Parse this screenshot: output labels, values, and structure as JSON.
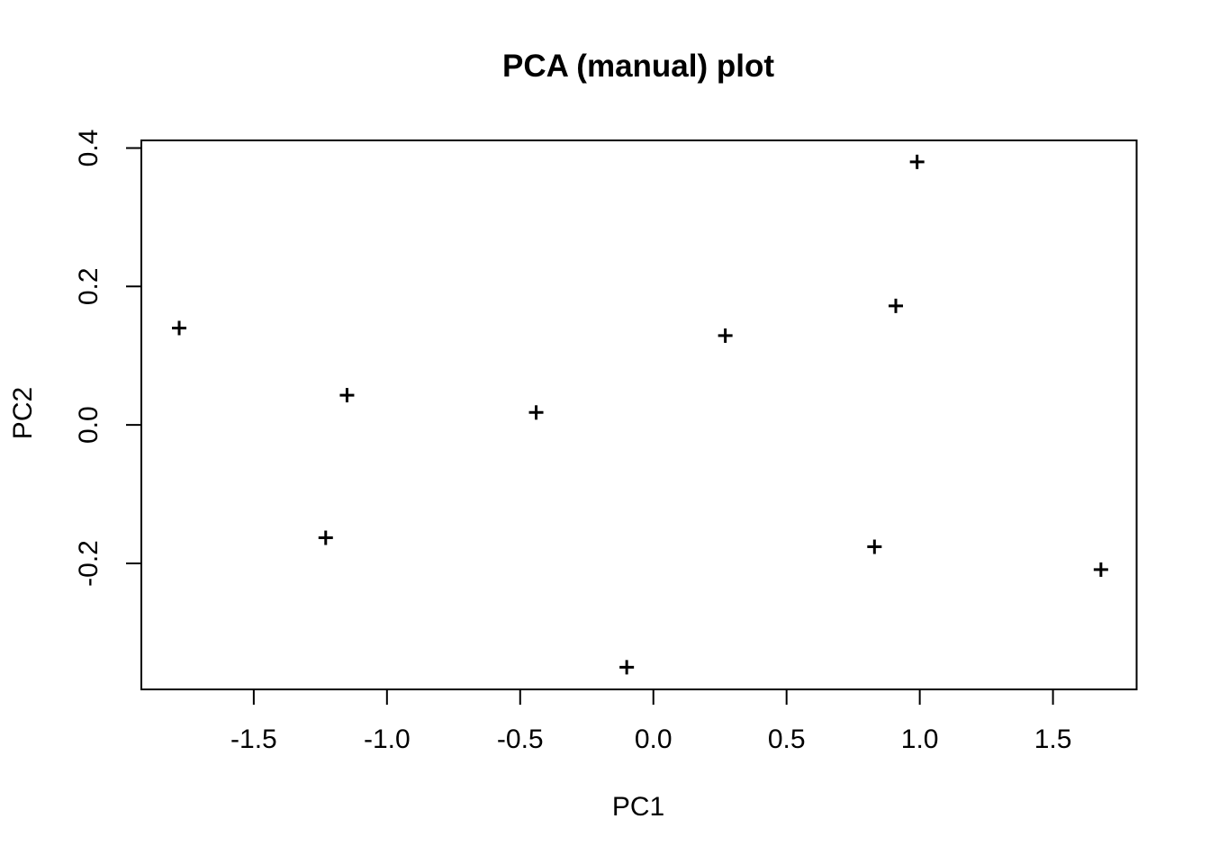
{
  "chart_data": {
    "type": "scatter",
    "title": "PCA (manual) plot",
    "xlabel": "PC1",
    "ylabel": "PC2",
    "marker": "plus",
    "marker_color": "#000000",
    "background_color": "#ffffff",
    "axis_color": "#000000",
    "grid": false,
    "legend": null,
    "xlim": [
      -1.92,
      1.81
    ],
    "ylim": [
      -0.38,
      0.41
    ],
    "xticks": [
      -1.5,
      -1.0,
      -0.5,
      0.0,
      0.5,
      1.0,
      1.5
    ],
    "xtick_labels": [
      "-1.5",
      "-1.0",
      "-0.5",
      "0.0",
      "0.5",
      "1.0",
      "1.5"
    ],
    "yticks": [
      -0.2,
      0.0,
      0.2,
      0.4
    ],
    "ytick_labels": [
      "-0.2",
      "0.0",
      "0.2",
      "0.4"
    ],
    "points": [
      {
        "x": -1.78,
        "y": 0.14
      },
      {
        "x": -1.23,
        "y": -0.163
      },
      {
        "x": -1.15,
        "y": 0.043
      },
      {
        "x": -0.44,
        "y": 0.018
      },
      {
        "x": -0.1,
        "y": -0.35
      },
      {
        "x": 0.27,
        "y": 0.129
      },
      {
        "x": 0.83,
        "y": -0.176
      },
      {
        "x": 0.91,
        "y": 0.172
      },
      {
        "x": 0.99,
        "y": 0.38
      },
      {
        "x": 1.68,
        "y": -0.209
      }
    ]
  }
}
